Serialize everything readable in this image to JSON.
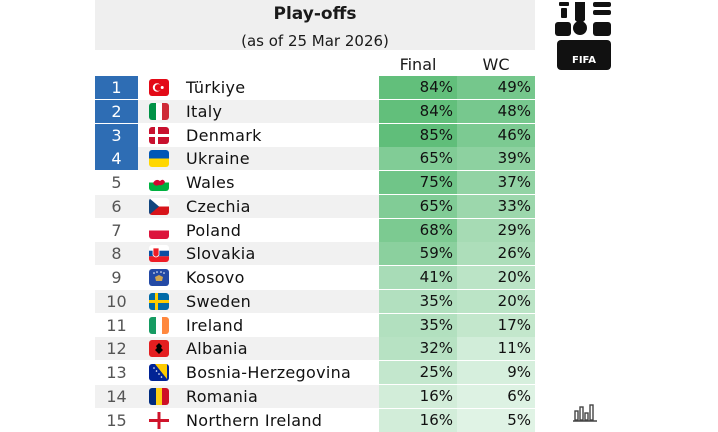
{
  "header": {
    "title": "Play-offs",
    "subtitle": "(as of 25 Mar 2026)"
  },
  "columns": {
    "final": "Final",
    "wc": "WC"
  },
  "logo": {
    "text": "FIFA",
    "icon": "world-cup-trophy-icon"
  },
  "colors": {
    "qualified": "#2e6db4",
    "final_scale": "#5fbf7a",
    "wc_scale": "#5fbf7a"
  },
  "chart_data": {
    "type": "table",
    "title": "Play-offs",
    "subtitle": "(as of 25 Mar 2026)",
    "columns": [
      "Final",
      "WC"
    ],
    "rows": [
      {
        "rank": "1",
        "team": "Türkiye",
        "flag": "turkey",
        "final": "84%",
        "wc": "49%",
        "final_v": 84,
        "wc_v": 49,
        "qualified": true
      },
      {
        "rank": "2",
        "team": "Italy",
        "flag": "italy",
        "final": "84%",
        "wc": "48%",
        "final_v": 84,
        "wc_v": 48,
        "qualified": true
      },
      {
        "rank": "3",
        "team": "Denmark",
        "flag": "denmark",
        "final": "85%",
        "wc": "46%",
        "final_v": 85,
        "wc_v": 46,
        "qualified": true
      },
      {
        "rank": "4",
        "team": "Ukraine",
        "flag": "ukraine",
        "final": "65%",
        "wc": "39%",
        "final_v": 65,
        "wc_v": 39,
        "qualified": true
      },
      {
        "rank": "5",
        "team": "Wales",
        "flag": "wales",
        "final": "75%",
        "wc": "37%",
        "final_v": 75,
        "wc_v": 37,
        "qualified": false
      },
      {
        "rank": "6",
        "team": "Czechia",
        "flag": "czechia",
        "final": "65%",
        "wc": "33%",
        "final_v": 65,
        "wc_v": 33,
        "qualified": false
      },
      {
        "rank": "7",
        "team": "Poland",
        "flag": "poland",
        "final": "68%",
        "wc": "29%",
        "final_v": 68,
        "wc_v": 29,
        "qualified": false
      },
      {
        "rank": "8",
        "team": "Slovakia",
        "flag": "slovakia",
        "final": "59%",
        "wc": "26%",
        "final_v": 59,
        "wc_v": 26,
        "qualified": false
      },
      {
        "rank": "9",
        "team": "Kosovo",
        "flag": "kosovo",
        "final": "41%",
        "wc": "20%",
        "final_v": 41,
        "wc_v": 20,
        "qualified": false
      },
      {
        "rank": "10",
        "team": "Sweden",
        "flag": "sweden",
        "final": "35%",
        "wc": "20%",
        "final_v": 35,
        "wc_v": 20,
        "qualified": false
      },
      {
        "rank": "11",
        "team": "Ireland",
        "flag": "ireland",
        "final": "35%",
        "wc": "17%",
        "final_v": 35,
        "wc_v": 17,
        "qualified": false
      },
      {
        "rank": "12",
        "team": "Albania",
        "flag": "albania",
        "final": "32%",
        "wc": "11%",
        "final_v": 32,
        "wc_v": 11,
        "qualified": false
      },
      {
        "rank": "13",
        "team": "Bosnia-Herzegovina",
        "flag": "bosnia",
        "final": "25%",
        "wc": "9%",
        "final_v": 25,
        "wc_v": 9,
        "qualified": false
      },
      {
        "rank": "14",
        "team": "Romania",
        "flag": "romania",
        "final": "16%",
        "wc": "6%",
        "final_v": 16,
        "wc_v": 6,
        "qualified": false
      },
      {
        "rank": "15",
        "team": "Northern Ireland",
        "flag": "northern-ireland",
        "final": "16%",
        "wc": "5%",
        "final_v": 16,
        "wc_v": 5,
        "qualified": false
      }
    ]
  }
}
